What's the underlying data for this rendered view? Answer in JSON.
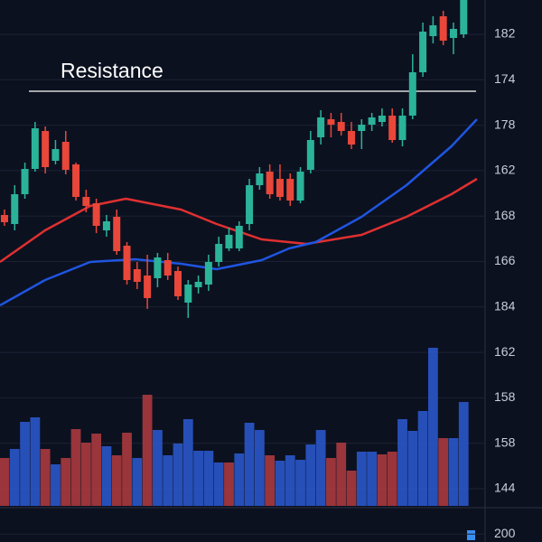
{
  "chart_data": {
    "type": "candlestick",
    "annotation": "Resistance",
    "resistance": 269,
    "ylim": [
      0,
      370
    ],
    "xlim": [
      -0.44,
      47.1
    ],
    "up_color": "#2bb39a",
    "down_color": "#e8473a",
    "open": [
      132,
      122,
      155,
      183,
      225,
      192,
      213,
      188,
      152,
      145,
      115,
      130,
      98,
      72,
      65,
      62,
      82,
      70,
      35,
      52,
      55,
      80,
      95,
      95,
      122,
      165,
      180,
      172,
      172,
      148,
      182,
      218,
      238,
      235,
      225,
      225,
      232,
      235,
      242,
      215,
      242,
      290,
      330,
      352,
      328,
      332
    ],
    "close": [
      124,
      155,
      183,
      228,
      185,
      205,
      182,
      152,
      142,
      120,
      125,
      92,
      60,
      58,
      40,
      85,
      65,
      42,
      55,
      58,
      80,
      100,
      110,
      120,
      165,
      178,
      155,
      152,
      148,
      180,
      215,
      240,
      232,
      225,
      210,
      232,
      240,
      242,
      215,
      242,
      290,
      335,
      342,
      325,
      338,
      370
    ],
    "high": [
      138,
      165,
      190,
      235,
      230,
      215,
      225,
      190,
      160,
      150,
      132,
      138,
      102,
      80,
      88,
      90,
      90,
      75,
      60,
      65,
      88,
      108,
      118,
      125,
      172,
      185,
      188,
      188,
      178,
      185,
      225,
      248,
      245,
      245,
      235,
      238,
      245,
      250,
      250,
      250,
      310,
      345,
      352,
      358,
      345,
      370
    ],
    "low": [
      120,
      115,
      150,
      180,
      178,
      188,
      177,
      148,
      135,
      112,
      108,
      88,
      55,
      50,
      28,
      52,
      60,
      38,
      18,
      45,
      48,
      75,
      92,
      92,
      115,
      160,
      150,
      148,
      142,
      145,
      178,
      210,
      218,
      220,
      205,
      205,
      225,
      230,
      212,
      208,
      238,
      285,
      322,
      320,
      310,
      328
    ],
    "moving_averages": [
      {
        "color": "#e03030",
        "x": [
          -0.44,
          3.98,
          8.4,
          11.9,
          17.3,
          20.8,
          25.2,
          29.6,
          35,
          39.4,
          43.8,
          46.3
        ],
        "values": [
          80,
          115,
          142,
          150,
          138,
          122,
          105,
          100,
          110,
          130,
          155,
          172
        ]
      },
      {
        "color": "#1f55e0",
        "x": [
          -0.44,
          3.98,
          8.4,
          12.8,
          17.3,
          20.8,
          25.2,
          27.9,
          30.5,
          35,
          39.4,
          43.8,
          46.3
        ],
        "values": [
          32,
          60,
          80,
          83,
          78,
          72,
          82,
          95,
          102,
          130,
          165,
          208,
          238
        ]
      }
    ],
    "volume_ylim": [
      0,
      180
    ],
    "volume": [
      53,
      63,
      93,
      98,
      63,
      46,
      53,
      85,
      70,
      80,
      66,
      56,
      81,
      53,
      123,
      84,
      56,
      69,
      96,
      61,
      61,
      48,
      48,
      58,
      92,
      84,
      56,
      50,
      56,
      51,
      68,
      84,
      53,
      70,
      39,
      60,
      60,
      57,
      60,
      96,
      83,
      105,
      175,
      75,
      75,
      115
    ],
    "volume_colors": [
      "#a83a3e",
      "#2a56c9",
      "#2a56c9",
      "#2a56c9",
      "#a83a3e",
      "#2a56c9",
      "#a83a3e",
      "#a83a3e",
      "#a83a3e",
      "#a83a3e",
      "#2a56c9",
      "#a83a3e",
      "#a83a3e",
      "#2a56c9",
      "#a83a3e",
      "#2a56c9",
      "#2a56c9",
      "#2a56c9",
      "#2a56c9",
      "#2a56c9",
      "#2a56c9",
      "#2a56c9",
      "#a83a3e",
      "#2a56c9",
      "#2a56c9",
      "#2a56c9",
      "#a83a3e",
      "#2a56c9",
      "#2a56c9",
      "#2a56c9",
      "#2a56c9",
      "#2a56c9",
      "#a83a3e",
      "#a83a3e",
      "#a83a3e",
      "#2a56c9",
      "#2a56c9",
      "#a83a3e",
      "#a83a3e",
      "#2a56c9",
      "#2a56c9",
      "#2a56c9",
      "#2a56c9",
      "#a83a3e",
      "#2a56c9",
      "#2a56c9"
    ],
    "axis_labels": [
      182,
      174,
      178,
      162,
      168,
      166,
      184,
      162,
      158,
      158,
      144,
      200
    ]
  }
}
